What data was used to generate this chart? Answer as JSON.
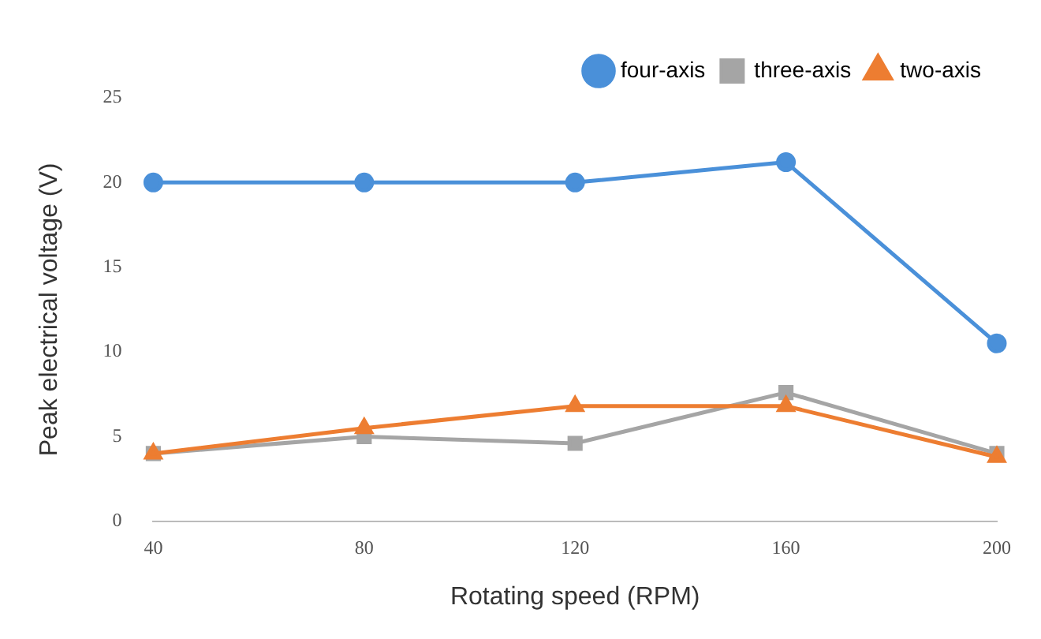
{
  "chart_data": {
    "type": "line",
    "xlabel": "Rotating speed (RPM)",
    "ylabel": "Peak electrical voltage (V)",
    "categories": [
      "40",
      "80",
      "120",
      "160",
      "200"
    ],
    "ylim": [
      0,
      25
    ],
    "yticks": [
      0,
      5,
      10,
      15,
      20,
      25
    ],
    "grid": false,
    "legend": "top right",
    "line_style": "solid",
    "series": [
      {
        "name": "four-axis",
        "color": "#4a90d9",
        "marker": "circle",
        "values": [
          20,
          20,
          20,
          21.2,
          10.5
        ]
      },
      {
        "name": "three-axis",
        "color": "#a5a5a5",
        "marker": "square",
        "values": [
          4.0,
          5.0,
          4.6,
          7.6,
          4.0
        ]
      },
      {
        "name": "two-axis",
        "color": "#ed7d31",
        "marker": "triangle",
        "values": [
          4.0,
          5.5,
          6.8,
          6.8,
          3.8
        ]
      }
    ]
  }
}
